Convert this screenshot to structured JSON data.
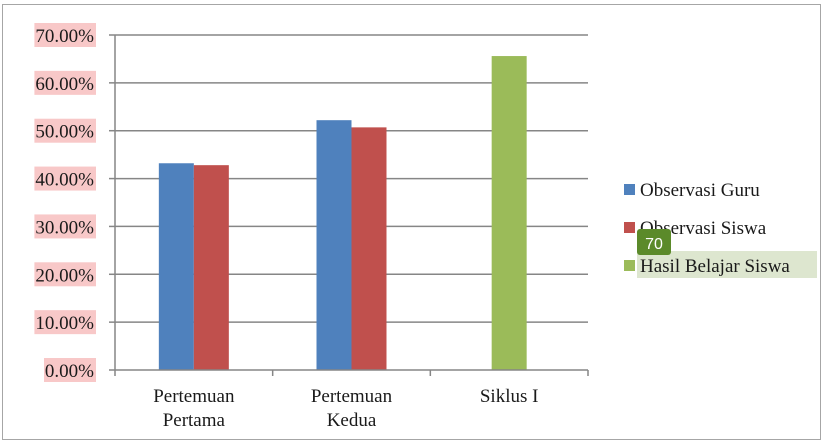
{
  "chart_data": {
    "type": "bar",
    "categories": [
      "Pertemuan Pertama",
      "Pertemuan Kedua",
      "Siklus I"
    ],
    "category_lines": [
      [
        "Pertemuan",
        "Pertama"
      ],
      [
        "Pertemuan",
        "Kedua"
      ],
      [
        "Siklus I"
      ]
    ],
    "series": [
      {
        "name": "Observasi Guru",
        "color": "#4f81bd",
        "values": [
          43.2,
          52.2,
          null
        ]
      },
      {
        "name": "Observasi Siswa",
        "color": "#c0504d",
        "values": [
          42.8,
          50.7,
          null
        ]
      },
      {
        "name": "Hasil Belajar Siswa",
        "color": "#9bbb59",
        "values": [
          null,
          null,
          65.6
        ]
      }
    ],
    "ylim": [
      0,
      70
    ],
    "yticks": [
      "0.00%",
      "10.00%",
      "20.00%",
      "30.00%",
      "40.00%",
      "50.00%",
      "60.00%",
      "70.00%"
    ],
    "grid": true,
    "legend_position": "right",
    "annotation": "70",
    "colors": {
      "grid": "#868686",
      "tick_highlight": "#f8c8c8",
      "legend_highlight": "#dde6cf",
      "annotation_bg": "#5b8a2a"
    }
  }
}
